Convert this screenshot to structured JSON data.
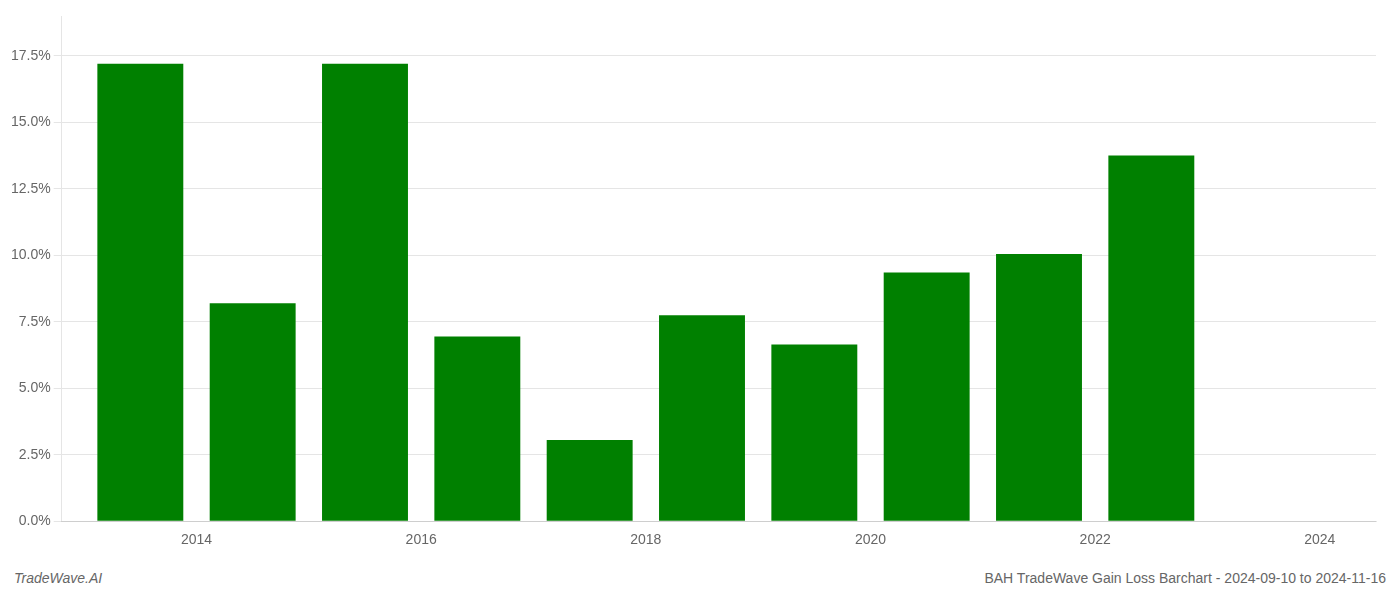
{
  "chart_data": {
    "type": "bar",
    "title": "BAH TradeWave Gain Loss Barchart - 2024-09-10 to 2024-11-16",
    "annotations": [
      "TradeWave.AI"
    ],
    "x": [
      2014,
      2015,
      2016,
      2017,
      2018,
      2019,
      2020,
      2021,
      2022,
      2023
    ],
    "values": [
      0.172,
      0.082,
      0.172,
      0.0695,
      0.0305,
      0.0775,
      0.0665,
      0.0935,
      0.1005,
      0.1375
    ],
    "color": "#008000",
    "xlim": [
      2013.3,
      2025.0
    ],
    "xticks": [
      {
        "value": 2014.5,
        "label": "2014"
      },
      {
        "value": 2016.5,
        "label": "2016"
      },
      {
        "value": 2018.5,
        "label": "2018"
      },
      {
        "value": 2020.5,
        "label": "2020"
      },
      {
        "value": 2022.5,
        "label": "2022"
      },
      {
        "value": 2024.5,
        "label": "2024"
      }
    ],
    "ylim": [
      0,
      0.19
    ],
    "yticks": [
      {
        "value": 0.0,
        "label": "0.0%"
      },
      {
        "value": 0.025,
        "label": "2.5%"
      },
      {
        "value": 0.05,
        "label": "5.0%"
      },
      {
        "value": 0.075,
        "label": "7.5%"
      },
      {
        "value": 0.1,
        "label": "10.0%"
      },
      {
        "value": 0.125,
        "label": "12.5%"
      },
      {
        "value": 0.15,
        "label": "15.0%"
      },
      {
        "value": 0.175,
        "label": "17.5%"
      }
    ],
    "grid": true
  }
}
